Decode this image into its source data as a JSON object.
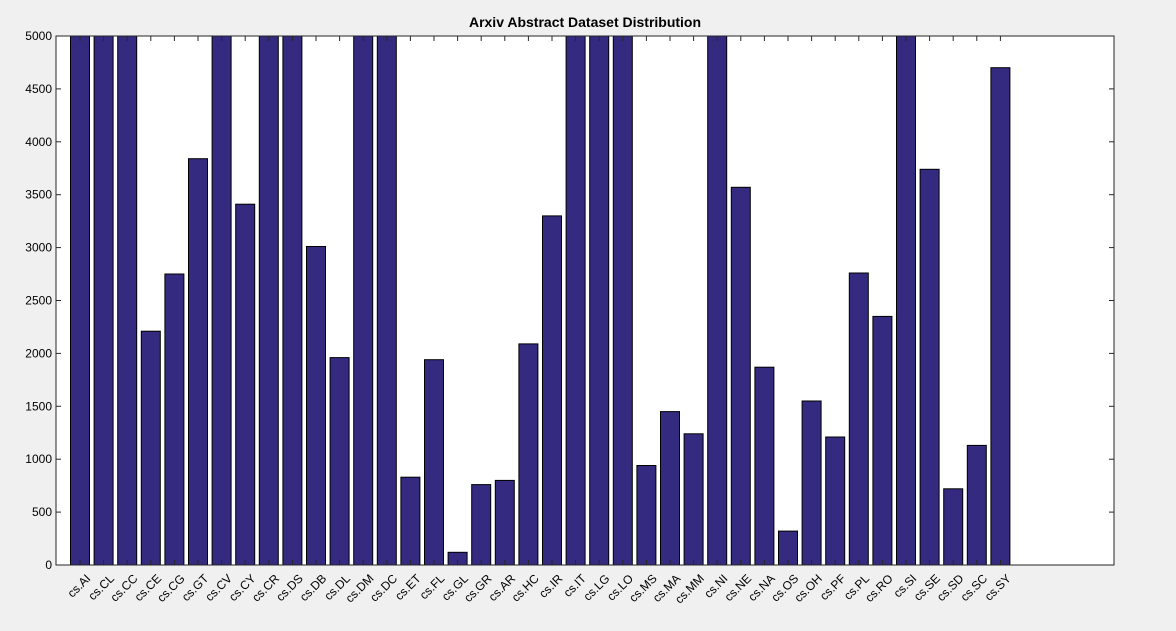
{
  "chart_data": {
    "type": "bar",
    "title": "Arxiv Abstract Dataset Distribution",
    "xlabel": "",
    "ylabel": "",
    "ylim": [
      0,
      5000
    ],
    "yticks": [
      0,
      500,
      1000,
      1500,
      2000,
      2500,
      3000,
      3500,
      4000,
      4500,
      5000
    ],
    "grid": false,
    "categories": [
      "cs.AI",
      "cs.CL",
      "cs.CC",
      "cs.CE",
      "cs.CG",
      "cs.GT",
      "cs.CV",
      "cs.CY",
      "cs.CR",
      "cs.DS",
      "cs.DB",
      "cs.DL",
      "cs.DM",
      "cs.DC",
      "cs.ET",
      "cs.FL",
      "cs.GL",
      "cs.GR",
      "cs.AR",
      "cs.HC",
      "cs.IR",
      "cs.IT",
      "cs.LG",
      "cs.LO",
      "cs.MS",
      "cs.MA",
      "cs.MM",
      "cs.NI",
      "cs.NE",
      "cs.NA",
      "cs.OS",
      "cs.OH",
      "cs.PF",
      "cs.PL",
      "cs.RO",
      "cs.SI",
      "cs.SE",
      "cs.SD",
      "cs.SC",
      "cs.SY"
    ],
    "values": [
      5000,
      5000,
      5000,
      2210,
      2750,
      3840,
      5000,
      3410,
      5000,
      5000,
      3010,
      1960,
      5000,
      5000,
      830,
      1940,
      120,
      760,
      800,
      2090,
      3300,
      5000,
      5000,
      5000,
      940,
      1450,
      1240,
      5000,
      3570,
      1870,
      320,
      1550,
      1210,
      2760,
      2350,
      5000,
      3740,
      720,
      1130,
      4700
    ],
    "colors": {
      "bar": "#342b80",
      "bar_edge": "#000000",
      "plot_bg": "#ffffff",
      "figure_bg": "#f0f0f0"
    }
  }
}
